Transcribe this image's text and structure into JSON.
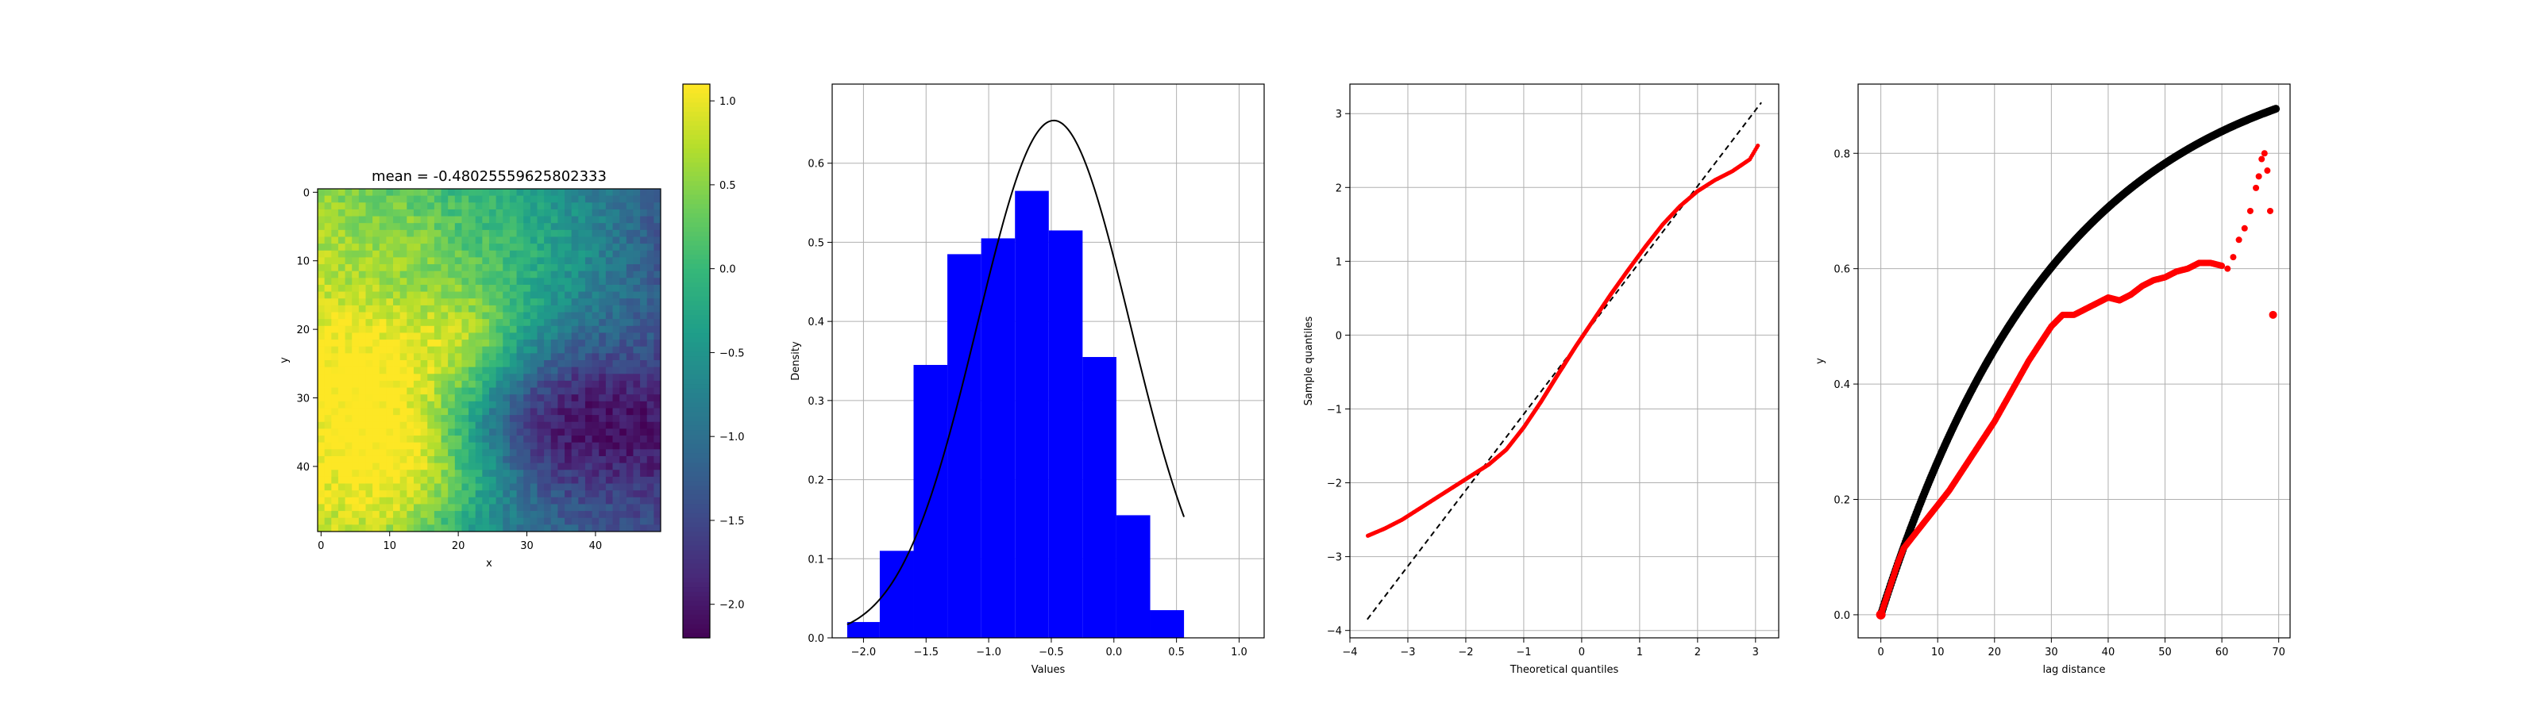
{
  "chart_data": [
    {
      "type": "heatmap",
      "title": "mean = -0.48025559625802333",
      "xlabel": "x",
      "ylabel": "y",
      "x_ticks": [
        0,
        10,
        20,
        30,
        40
      ],
      "y_ticks": [
        0,
        10,
        20,
        30,
        40
      ],
      "grid_size": [
        50,
        50
      ],
      "colormap": "viridis",
      "colorbar_ticks": [
        1.0,
        0.5,
        0.0,
        -0.5,
        -1.0,
        -1.5,
        -2.0
      ],
      "colorbar_tick_labels": [
        "1.0",
        "0.5",
        "0.0",
        "−0.5",
        "−1.0",
        "−1.5",
        "−2.0"
      ],
      "vmin": -2.2,
      "vmax": 1.1,
      "field_description_hint": "random field"
    },
    {
      "type": "bar",
      "subtype": "histogram-with-pdf",
      "xlabel": "Values",
      "ylabel": "Density",
      "xlim": [
        -2.25,
        1.2
      ],
      "ylim": [
        0,
        0.7
      ],
      "x_ticks": [
        -2.0,
        -1.5,
        -1.0,
        -0.5,
        0.0,
        0.5,
        1.0
      ],
      "x_tick_labels": [
        "−2.0",
        "−1.5",
        "−1.0",
        "−0.5",
        "0.0",
        "0.5",
        "1.0"
      ],
      "y_ticks": [
        0.0,
        0.1,
        0.2,
        0.3,
        0.4,
        0.5,
        0.6
      ],
      "y_tick_labels": [
        "0.0",
        "0.1",
        "0.2",
        "0.3",
        "0.4",
        "0.5",
        "0.6"
      ],
      "grid": true,
      "bins": [
        {
          "left": -2.13,
          "right": -1.87,
          "density": 0.02
        },
        {
          "left": -1.87,
          "right": -1.6,
          "density": 0.11
        },
        {
          "left": -1.6,
          "right": -1.33,
          "density": 0.345
        },
        {
          "left": -1.33,
          "right": -1.06,
          "density": 0.485
        },
        {
          "left": -1.06,
          "right": -0.79,
          "density": 0.505
        },
        {
          "left": -0.79,
          "right": -0.52,
          "density": 0.565
        },
        {
          "left": -0.52,
          "right": -0.25,
          "density": 0.515
        },
        {
          "left": -0.25,
          "right": 0.02,
          "density": 0.355
        },
        {
          "left": 0.02,
          "right": 0.29,
          "density": 0.155
        },
        {
          "left": 0.29,
          "right": 0.56,
          "density": 0.035
        }
      ],
      "bar_color": "#0000ff",
      "pdf": {
        "mean": -0.48,
        "std": 0.61,
        "color": "#000000"
      }
    },
    {
      "type": "scatter",
      "subtype": "qq-plot",
      "xlabel": "Theoretical quantiles",
      "ylabel": "Sample quantiles",
      "xlim": [
        -4.0,
        3.4
      ],
      "ylim": [
        -4.1,
        3.4
      ],
      "x_ticks": [
        -4,
        -3,
        -2,
        -1,
        0,
        1,
        2,
        3
      ],
      "x_tick_labels": [
        "−4",
        "−3",
        "−2",
        "−1",
        "0",
        "1",
        "2",
        "3"
      ],
      "y_ticks": [
        -4,
        -3,
        -2,
        -1,
        0,
        1,
        2,
        3
      ],
      "y_tick_labels": [
        "−4",
        "−3",
        "−2",
        "−1",
        "0",
        "1",
        "2",
        "3"
      ],
      "grid": true,
      "reference_line": {
        "from": [
          -3.7,
          -3.85
        ],
        "to": [
          3.1,
          3.15
        ],
        "style": "dashed",
        "color": "#000000"
      },
      "sample_curve": [
        [
          -3.7,
          -2.72
        ],
        [
          -3.4,
          -2.62
        ],
        [
          -3.1,
          -2.5
        ],
        [
          -2.8,
          -2.35
        ],
        [
          -2.5,
          -2.2
        ],
        [
          -2.2,
          -2.05
        ],
        [
          -1.9,
          -1.9
        ],
        [
          -1.6,
          -1.75
        ],
        [
          -1.3,
          -1.55
        ],
        [
          -1.0,
          -1.25
        ],
        [
          -0.7,
          -0.9
        ],
        [
          -0.4,
          -0.52
        ],
        [
          -0.1,
          -0.15
        ],
        [
          0.2,
          0.2
        ],
        [
          0.5,
          0.55
        ],
        [
          0.8,
          0.88
        ],
        [
          1.1,
          1.2
        ],
        [
          1.4,
          1.5
        ],
        [
          1.7,
          1.75
        ],
        [
          2.0,
          1.95
        ],
        [
          2.3,
          2.1
        ],
        [
          2.6,
          2.22
        ],
        [
          2.9,
          2.38
        ],
        [
          3.05,
          2.58
        ]
      ],
      "point_color": "#ff0000"
    },
    {
      "type": "scatter",
      "subtype": "variogram",
      "xlabel": "lag distance",
      "ylabel": "y",
      "xlim": [
        -4,
        72
      ],
      "ylim": [
        -0.04,
        0.92
      ],
      "x_ticks": [
        0,
        10,
        20,
        30,
        40,
        50,
        60,
        70
      ],
      "x_tick_labels": [
        "0",
        "10",
        "20",
        "30",
        "40",
        "50",
        "60",
        "70"
      ],
      "y_ticks": [
        0.0,
        0.2,
        0.4,
        0.6,
        0.8
      ],
      "y_tick_labels": [
        "0.0",
        "0.2",
        "0.4",
        "0.6",
        "0.8"
      ],
      "grid": true,
      "series": [
        {
          "color": "#000000",
          "model": {
            "sill": 0.99,
            "range": 32.0,
            "lag_max": 69.5
          }
        },
        {
          "color": "#ff0000",
          "values": [
            [
              0,
              0.0
            ],
            [
              1,
              0.03
            ],
            [
              2,
              0.06
            ],
            [
              3,
              0.09
            ],
            [
              4,
              0.115
            ],
            [
              6,
              0.14
            ],
            [
              8,
              0.165
            ],
            [
              10,
              0.19
            ],
            [
              12,
              0.215
            ],
            [
              14,
              0.245
            ],
            [
              16,
              0.275
            ],
            [
              18,
              0.305
            ],
            [
              20,
              0.335
            ],
            [
              22,
              0.37
            ],
            [
              24,
              0.405
            ],
            [
              26,
              0.44
            ],
            [
              28,
              0.47
            ],
            [
              30,
              0.5
            ],
            [
              32,
              0.52
            ],
            [
              34,
              0.52
            ],
            [
              36,
              0.53
            ],
            [
              38,
              0.54
            ],
            [
              40,
              0.55
            ],
            [
              42,
              0.545
            ],
            [
              44,
              0.555
            ],
            [
              46,
              0.57
            ],
            [
              48,
              0.58
            ],
            [
              50,
              0.585
            ],
            [
              52,
              0.595
            ],
            [
              54,
              0.6
            ],
            [
              56,
              0.61
            ],
            [
              58,
              0.61
            ],
            [
              60,
              0.605
            ],
            [
              61,
              0.6
            ],
            [
              62,
              0.62
            ],
            [
              63,
              0.65
            ],
            [
              64,
              0.67
            ],
            [
              65,
              0.7
            ],
            [
              66,
              0.74
            ],
            [
              66.5,
              0.76
            ],
            [
              67,
              0.79
            ],
            [
              67.5,
              0.8
            ],
            [
              68,
              0.77
            ],
            [
              68.5,
              0.7
            ],
            [
              69,
              0.52
            ]
          ]
        }
      ]
    }
  ]
}
